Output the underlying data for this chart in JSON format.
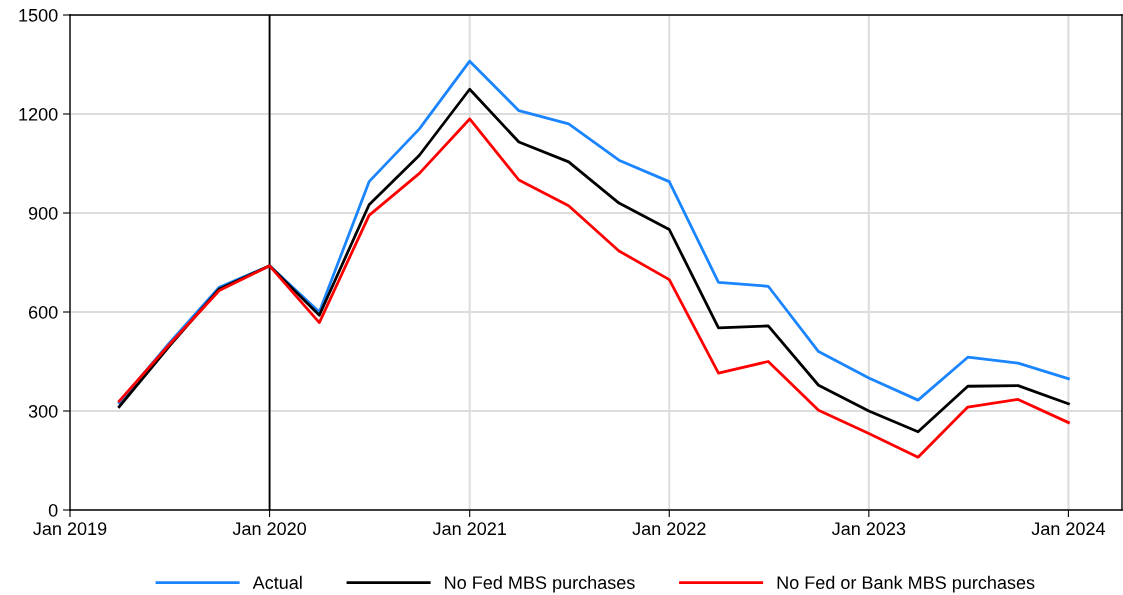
{
  "chart_data": {
    "type": "line",
    "x": [
      "2019-04",
      "2019-07",
      "2019-10",
      "2020-01",
      "2020-04",
      "2020-07",
      "2020-10",
      "2021-01",
      "2021-04",
      "2021-07",
      "2021-10",
      "2022-01",
      "2022-04",
      "2022-07",
      "2022-10",
      "2023-01",
      "2023-04",
      "2023-07",
      "2023-10",
      "2024-01"
    ],
    "series": [
      {
        "name": "Actual",
        "color": "#1a85ff",
        "values": [
          325,
          505,
          675,
          740,
          600,
          995,
          1155,
          1360,
          1210,
          1170,
          1060,
          995,
          690,
          678,
          480,
          400,
          333,
          463,
          445,
          398
        ]
      },
      {
        "name": "No Fed MBS purchases",
        "color": "#000000",
        "values": [
          313,
          495,
          670,
          740,
          590,
          925,
          1075,
          1275,
          1115,
          1055,
          930,
          850,
          552,
          558,
          378,
          300,
          237,
          375,
          377,
          322
        ]
      },
      {
        "name": "No Fed or Bank MBS purchases",
        "color": "#ff0000",
        "values": [
          330,
          500,
          665,
          740,
          568,
          893,
          1020,
          1185,
          1000,
          922,
          785,
          698,
          415,
          450,
          302,
          232,
          160,
          312,
          335,
          265
        ]
      }
    ],
    "xlim": [
      "2019-01",
      "2024-04-08"
    ],
    "xticks": [
      {
        "value": "2019-01",
        "label": "Jan 2019"
      },
      {
        "value": "2020-01",
        "label": "Jan 2020"
      },
      {
        "value": "2021-01",
        "label": "Jan 2021"
      },
      {
        "value": "2022-01",
        "label": "Jan 2022"
      },
      {
        "value": "2023-01",
        "label": "Jan 2023"
      },
      {
        "value": "2024-01",
        "label": "Jan 2024"
      }
    ],
    "ylim": [
      0,
      1500
    ],
    "yticks": [
      0,
      300,
      600,
      900,
      1200,
      1500
    ],
    "ref_lines": [
      {
        "axis": "x",
        "value": "2020-01",
        "color": "#000000"
      }
    ],
    "grid": true,
    "legend": "bottom",
    "marker": "none",
    "line_style": "solid"
  }
}
